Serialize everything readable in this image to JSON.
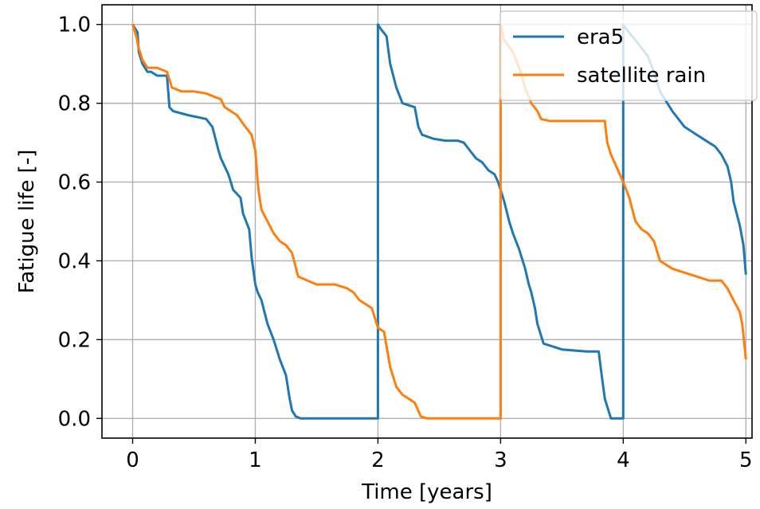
{
  "chart_data": {
    "type": "line",
    "title": "",
    "xlabel": "Time [years]",
    "ylabel": "Fatigue life [-]",
    "xlim": [
      -0.25,
      5.05
    ],
    "ylim": [
      -0.05,
      1.05
    ],
    "xticks": [
      0,
      1,
      2,
      3,
      4,
      5
    ],
    "yticks": [
      0.0,
      0.2,
      0.4,
      0.6,
      0.8,
      1.0
    ],
    "xtick_labels": [
      "0",
      "1",
      "2",
      "3",
      "4",
      "5"
    ],
    "ytick_labels": [
      "0.0",
      "0.2",
      "0.4",
      "0.6",
      "0.8",
      "1.0"
    ],
    "grid": true,
    "legend_position": "upper-right",
    "series": [
      {
        "name": "era5",
        "color": "#1f77b4",
        "x": [
          0.0,
          0.04,
          0.05,
          0.08,
          0.12,
          0.15,
          0.2,
          0.28,
          0.3,
          0.33,
          0.45,
          0.6,
          0.65,
          0.7,
          0.72,
          0.75,
          0.78,
          0.8,
          0.82,
          0.85,
          0.88,
          0.9,
          0.95,
          0.97,
          1.0,
          1.02,
          1.05,
          1.1,
          1.15,
          1.2,
          1.25,
          1.28,
          1.3,
          1.33,
          1.37,
          1.5,
          1.8,
          2.0,
          2.0,
          2.02,
          2.07,
          2.1,
          2.15,
          2.2,
          2.3,
          2.33,
          2.36,
          2.45,
          2.55,
          2.65,
          2.7,
          2.75,
          2.8,
          2.85,
          2.9,
          2.95,
          2.98,
          3.0,
          3.03,
          3.07,
          3.1,
          3.15,
          3.2,
          3.23,
          3.25,
          3.28,
          3.3,
          3.35,
          3.5,
          3.7,
          3.8,
          3.82,
          3.85,
          3.9,
          4.0,
          4.0,
          4.02,
          4.1,
          4.2,
          4.25,
          4.3,
          4.4,
          4.5,
          4.6,
          4.7,
          4.75,
          4.8,
          4.85,
          4.88,
          4.9,
          4.95,
          4.98,
          5.0
        ],
        "values": [
          1.0,
          0.98,
          0.93,
          0.9,
          0.88,
          0.88,
          0.87,
          0.87,
          0.79,
          0.78,
          0.77,
          0.76,
          0.74,
          0.68,
          0.66,
          0.64,
          0.62,
          0.6,
          0.58,
          0.57,
          0.56,
          0.52,
          0.48,
          0.41,
          0.34,
          0.32,
          0.3,
          0.24,
          0.2,
          0.15,
          0.11,
          0.05,
          0.02,
          0.005,
          0.0,
          0.0,
          0.0,
          0.0,
          1.0,
          0.99,
          0.97,
          0.9,
          0.84,
          0.8,
          0.79,
          0.74,
          0.72,
          0.71,
          0.705,
          0.705,
          0.7,
          0.68,
          0.66,
          0.65,
          0.63,
          0.62,
          0.6,
          0.58,
          0.55,
          0.5,
          0.47,
          0.43,
          0.38,
          0.34,
          0.32,
          0.28,
          0.24,
          0.19,
          0.175,
          0.17,
          0.17,
          0.12,
          0.05,
          0.0,
          0.0,
          1.0,
          0.99,
          0.96,
          0.92,
          0.88,
          0.83,
          0.78,
          0.74,
          0.72,
          0.7,
          0.69,
          0.67,
          0.64,
          0.6,
          0.55,
          0.49,
          0.44,
          0.365
        ]
      },
      {
        "name": "satellite rain",
        "color": "#ff7f0e",
        "x": [
          0.0,
          0.03,
          0.05,
          0.08,
          0.12,
          0.2,
          0.28,
          0.3,
          0.32,
          0.4,
          0.5,
          0.6,
          0.72,
          0.75,
          0.8,
          0.85,
          0.92,
          0.97,
          1.0,
          1.02,
          1.03,
          1.05,
          1.1,
          1.15,
          1.2,
          1.25,
          1.3,
          1.35,
          1.5,
          1.65,
          1.75,
          1.8,
          1.85,
          1.9,
          1.95,
          1.98,
          2.0,
          2.05,
          2.1,
          2.15,
          2.2,
          2.25,
          2.3,
          2.35,
          2.4,
          2.6,
          2.8,
          3.0,
          3.0,
          3.03,
          3.1,
          3.15,
          3.2,
          3.25,
          3.3,
          3.33,
          3.4,
          3.6,
          3.85,
          3.87,
          3.9,
          4.0,
          4.05,
          4.1,
          4.15,
          4.2,
          4.25,
          4.3,
          4.4,
          4.5,
          4.6,
          4.7,
          4.8,
          4.85,
          4.9,
          4.95,
          4.97,
          5.0
        ],
        "values": [
          1.0,
          0.97,
          0.94,
          0.91,
          0.89,
          0.89,
          0.88,
          0.86,
          0.84,
          0.83,
          0.83,
          0.825,
          0.81,
          0.79,
          0.78,
          0.77,
          0.74,
          0.72,
          0.68,
          0.6,
          0.57,
          0.53,
          0.5,
          0.47,
          0.45,
          0.44,
          0.42,
          0.36,
          0.34,
          0.34,
          0.33,
          0.32,
          0.3,
          0.29,
          0.28,
          0.25,
          0.23,
          0.22,
          0.13,
          0.08,
          0.06,
          0.05,
          0.04,
          0.005,
          0.0,
          0.0,
          0.0,
          0.0,
          1.0,
          0.96,
          0.93,
          0.89,
          0.84,
          0.8,
          0.78,
          0.76,
          0.755,
          0.755,
          0.755,
          0.7,
          0.67,
          0.6,
          0.56,
          0.5,
          0.48,
          0.47,
          0.45,
          0.4,
          0.38,
          0.37,
          0.36,
          0.35,
          0.35,
          0.33,
          0.3,
          0.27,
          0.24,
          0.15
        ]
      }
    ]
  }
}
